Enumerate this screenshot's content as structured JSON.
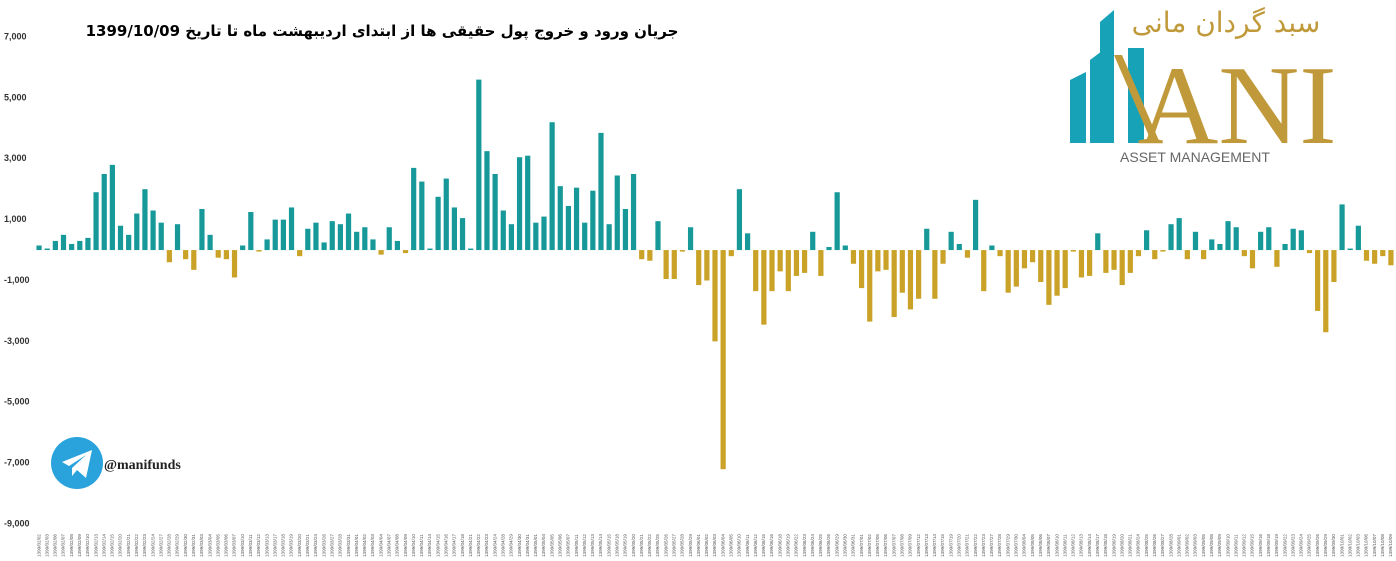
{
  "chart_data": {
    "type": "bar",
    "title": "جریان ورود و خروج پول حقیقی ها از ابتدای اردیبهشت ماه تا تاریخ 1399/10/09",
    "categories": [
      "1399/02/02",
      "1399/02/03",
      "1399/02/06",
      "1399/02/07",
      "1399/02/08",
      "1399/02/09",
      "1399/02/10",
      "1399/02/13",
      "1399/02/14",
      "1399/02/15",
      "1399/02/20",
      "1399/02/21",
      "1399/02/22",
      "1399/02/23",
      "1399/02/24",
      "1399/02/27",
      "1399/02/28",
      "1399/02/29",
      "1399/02/30",
      "1399/02/31",
      "1399/03/03",
      "1399/03/04",
      "1399/03/05",
      "1399/03/06",
      "1399/03/07",
      "1399/03/10",
      "1399/03/11",
      "1399/03/12",
      "1399/03/13",
      "1399/03/17",
      "1399/03/18",
      "1399/03/19",
      "1399/03/20",
      "1399/03/21",
      "1399/03/24",
      "1399/03/26",
      "1399/03/27",
      "1399/03/28",
      "1399/03/31",
      "1399/04/01",
      "1399/04/02",
      "1399/04/03",
      "1399/04/04",
      "1399/04/07",
      "1399/04/08",
      "1399/04/09",
      "1399/04/10",
      "1399/04/11",
      "1399/04/14",
      "1399/04/15",
      "1399/04/16",
      "1399/04/17",
      "1399/04/18",
      "1399/04/21",
      "1399/04/22",
      "1399/04/23",
      "1399/04/24",
      "1399/04/28",
      "1399/04/29",
      "1399/04/30",
      "1399/04/31",
      "1399/05/01",
      "1399/05/04",
      "1399/05/05",
      "1399/05/06",
      "1399/05/07",
      "1399/05/11",
      "1399/05/12",
      "1399/05/13",
      "1399/05/14",
      "1399/05/15",
      "1399/05/18",
      "1399/05/19",
      "1399/05/20",
      "1399/05/21",
      "1399/05/22",
      "1399/05/25",
      "1399/05/26",
      "1399/05/27",
      "1399/05/28",
      "1399/05/29",
      "1399/06/01",
      "1399/06/02",
      "1399/06/03",
      "1399/06/04",
      "1399/06/05",
      "1399/06/10",
      "1399/06/11",
      "1399/06/12",
      "1399/06/15",
      "1399/06/16",
      "1399/06/18",
      "1399/06/19",
      "1399/06/22",
      "1399/06/23",
      "1399/06/24",
      "1399/06/25",
      "1399/06/26",
      "1399/06/29",
      "1399/06/30",
      "1399/06/31",
      "1399/07/01",
      "1399/07/02",
      "1399/07/05",
      "1399/07/06",
      "1399/07/07",
      "1399/07/08",
      "1399/07/09",
      "1399/07/12",
      "1399/07/13",
      "1399/07/14",
      "1399/07/15",
      "1399/07/19",
      "1399/07/20",
      "1399/07/21",
      "1399/07/22",
      "1399/07/23",
      "1399/07/27",
      "1399/07/28",
      "1399/07/29",
      "1399/07/30",
      "1399/08/04",
      "1399/08/05",
      "1399/08/06",
      "1399/08/07",
      "1399/08/10",
      "1399/08/11",
      "1399/08/12",
      "1399/08/13",
      "1399/08/14",
      "1399/08/17",
      "1399/08/18",
      "1399/08/19",
      "1399/08/20",
      "1399/08/21",
      "1399/08/24",
      "1399/08/25",
      "1399/08/26",
      "1399/08/27",
      "1399/08/28",
      "1399/09/01",
      "1399/09/02",
      "1399/09/03",
      "1399/09/05",
      "1399/09/08",
      "1399/09/09",
      "1399/09/10",
      "1399/09/11",
      "1399/09/12",
      "1399/09/15",
      "1399/09/16",
      "1399/09/18",
      "1399/09/19",
      "1399/09/22",
      "1399/09/23",
      "1399/09/24",
      "1399/09/25",
      "1399/09/26",
      "1399/09/29",
      "1399/09/30",
      "1399/10/01",
      "1399/10/02",
      "1399/10/03",
      "1399/10/06",
      "1399/10/07",
      "1399/10/08",
      "1399/10/09"
    ],
    "values": [
      150,
      50,
      300,
      500,
      200,
      300,
      400,
      1900,
      2500,
      2800,
      800,
      500,
      1200,
      2000,
      1300,
      900,
      -400,
      850,
      -300,
      -650,
      1350,
      500,
      -250,
      -300,
      -900,
      150,
      1250,
      -50,
      350,
      1000,
      1000,
      1400,
      -200,
      700,
      900,
      250,
      950,
      850,
      1200,
      600,
      750,
      350,
      -150,
      750,
      300,
      -100,
      2700,
      2250,
      50,
      1750,
      2350,
      1400,
      1050,
      50,
      5600,
      3250,
      2500,
      1300,
      850,
      3050,
      3100,
      900,
      1100,
      4200,
      2100,
      1450,
      2050,
      900,
      1950,
      3850,
      850,
      2450,
      1350,
      2500,
      -300,
      -350,
      950,
      -950,
      -950,
      -50,
      750,
      -1150,
      -1000,
      -3000,
      -7200,
      -200,
      2000,
      550,
      -1350,
      -2450,
      -1350,
      -700,
      -1350,
      -850,
      -750,
      600,
      -850,
      100,
      1900,
      150,
      -450,
      -1250,
      -2350,
      -700,
      -650,
      -2200,
      -1400,
      -1950,
      -1600,
      700,
      -1600,
      -450,
      600,
      200,
      -250,
      1650,
      -1350,
      150,
      -200,
      -1400,
      -1200,
      -600,
      -400,
      -1050,
      -1800,
      -1500,
      -1250,
      -50,
      -900,
      -850,
      550,
      -750,
      -650,
      -1150,
      -750,
      -200,
      650,
      -300,
      -50,
      850,
      1050,
      -300,
      600,
      -300,
      350,
      200,
      950,
      750,
      -200,
      -600,
      600,
      750,
      -550,
      200,
      700,
      650,
      -100,
      -2000,
      -2700,
      -1050,
      1500,
      50,
      800,
      -350,
      -450,
      -200,
      -500
    ],
    "color_positive": "#17999a",
    "color_negative": "#c9a227",
    "ylim": [
      -9000,
      7000
    ],
    "yticks": [
      {
        "value": -9000,
        "label": "-9,000"
      },
      {
        "value": -7000,
        "label": "-7,000"
      },
      {
        "value": -5000,
        "label": "-5,000"
      },
      {
        "value": -3000,
        "label": "-3,000"
      },
      {
        "value": -1000,
        "label": "-1,000"
      },
      {
        "value": 1000,
        "label": "1,000"
      },
      {
        "value": 3000,
        "label": "3,000"
      },
      {
        "value": 5000,
        "label": "5,000"
      },
      {
        "value": 7000,
        "label": "7,000"
      }
    ],
    "grid": false
  },
  "logo": {
    "persian": "سبد گردان مانی",
    "latin": "ANI",
    "subtitle": "ASSET MANAGEMENT"
  },
  "telegram": {
    "handle": "@manifunds"
  }
}
